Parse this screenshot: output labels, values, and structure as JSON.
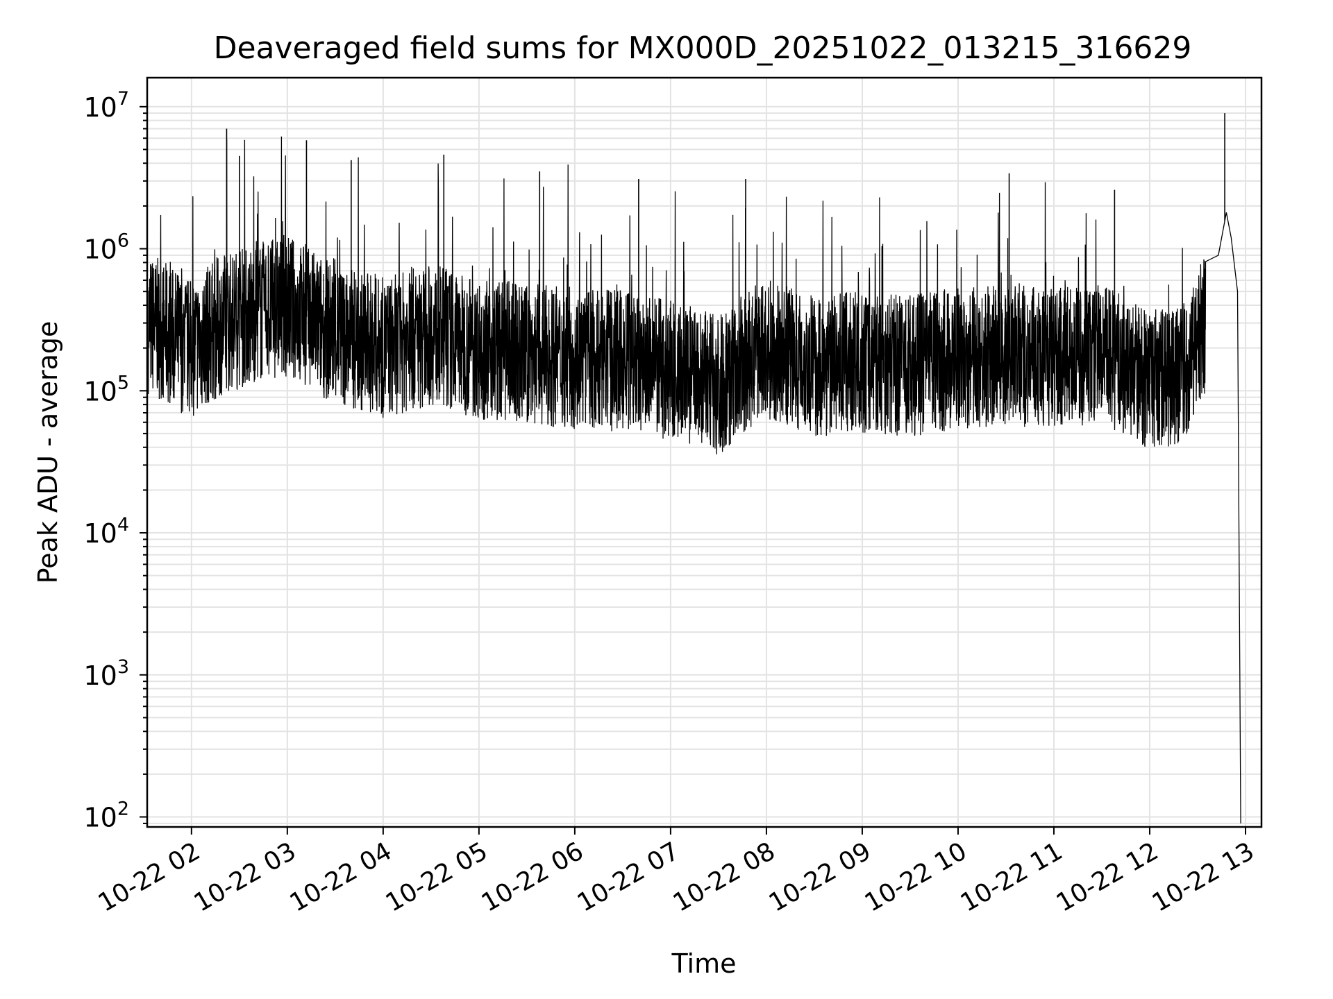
{
  "chart_data": {
    "type": "line",
    "title": "Deaveraged field sums for MX000D_20251022_013215_316629",
    "xlabel": "Time",
    "ylabel": "Peak ADU - average",
    "yscale": "log",
    "ylim": [
      85,
      16000000
    ],
    "xlim": [
      "2025-10-22T01:32:15",
      "2025-10-22T13:10:00"
    ],
    "grid": true,
    "line_color": "#000000",
    "x_ticks": [
      "10-22 02",
      "10-22 03",
      "10-22 04",
      "10-22 05",
      "10-22 06",
      "10-22 07",
      "10-22 08",
      "10-22 09",
      "10-22 10",
      "10-22 11",
      "10-22 12",
      "10-22 13"
    ],
    "x_tick_times": [
      "2025-10-22T02:00",
      "2025-10-22T03:00",
      "2025-10-22T04:00",
      "2025-10-22T05:00",
      "2025-10-22T06:00",
      "2025-10-22T07:00",
      "2025-10-22T08:00",
      "2025-10-22T09:00",
      "2025-10-22T10:00",
      "2025-10-22T11:00",
      "2025-10-22T12:00",
      "2025-10-22T13:00"
    ],
    "y_ticks": [
      {
        "value": 100,
        "base": "10",
        "exp": "2"
      },
      {
        "value": 1000,
        "base": "10",
        "exp": "3"
      },
      {
        "value": 10000,
        "base": "10",
        "exp": "4"
      },
      {
        "value": 100000,
        "base": "10",
        "exp": "5"
      },
      {
        "value": 1000000,
        "base": "10",
        "exp": "6"
      },
      {
        "value": 10000000,
        "base": "10",
        "exp": "7"
      }
    ],
    "series": [
      {
        "x": [
          "2025-10-22T01:33",
          "2025-10-22T01:45",
          "2025-10-22T02:00",
          "2025-10-22T02:20",
          "2025-10-22T02:40",
          "2025-10-22T03:00",
          "2025-10-22T03:30",
          "2025-10-22T04:00",
          "2025-10-22T04:30",
          "2025-10-22T05:00",
          "2025-10-22T05:30",
          "2025-10-22T06:00",
          "2025-10-22T06:30",
          "2025-10-22T07:00",
          "2025-10-22T07:30",
          "2025-10-22T08:00",
          "2025-10-22T08:30",
          "2025-10-22T09:00",
          "2025-10-22T09:30",
          "2025-10-22T10:00",
          "2025-10-22T10:30",
          "2025-10-22T11:00",
          "2025-10-22T11:30",
          "2025-10-22T12:00",
          "2025-10-22T12:20",
          "2025-10-22T12:35",
          "2025-10-22T12:43",
          "2025-10-22T12:48",
          "2025-10-22T12:51",
          "2025-10-22T12:55",
          "2025-10-22T12:57"
        ],
        "y": [
          300000,
          250000,
          200000,
          300000,
          350000,
          400000,
          250000,
          200000,
          250000,
          200000,
          180000,
          170000,
          160000,
          140000,
          110000,
          200000,
          150000,
          160000,
          150000,
          170000,
          180000,
          170000,
          180000,
          120000,
          130000,
          300000,
          900000,
          1800000,
          1200000,
          500000,
          90
        ]
      }
    ],
    "spikes": [
      {
        "x": "2025-10-22T02:22",
        "y": 7000000
      },
      {
        "x": "2025-10-22T02:30",
        "y": 4500000
      },
      {
        "x": "2025-10-22T03:12",
        "y": 5800000
      },
      {
        "x": "2025-10-22T03:40",
        "y": 4200000
      },
      {
        "x": "2025-10-22T04:38",
        "y": 4600000
      },
      {
        "x": "2025-10-22T05:38",
        "y": 3500000
      },
      {
        "x": "2025-10-22T06:40",
        "y": 3100000
      },
      {
        "x": "2025-10-22T07:47",
        "y": 3100000
      },
      {
        "x": "2025-10-22T10:32",
        "y": 3400000
      },
      {
        "x": "2025-10-22T11:38",
        "y": 2600000
      },
      {
        "x": "2025-10-22T12:47",
        "y": 9000000
      }
    ]
  }
}
